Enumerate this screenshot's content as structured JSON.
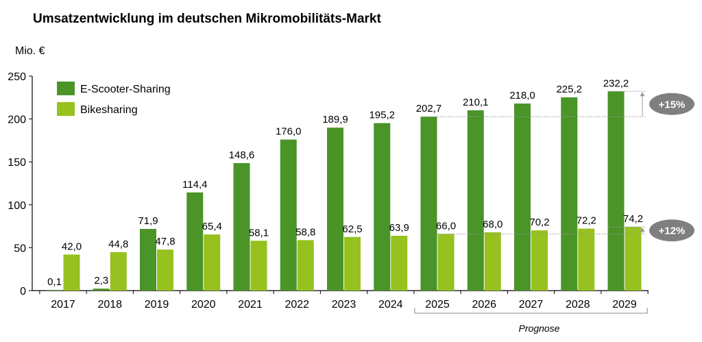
{
  "chart_data": {
    "type": "bar",
    "title": "Umsatzentwicklung im deutschen Mikromobilitäts-Markt",
    "ylabel": "Mio. €",
    "xlabel": "",
    "ylim": [
      0,
      250
    ],
    "yticks": [
      "0",
      "50",
      "100",
      "150",
      "200",
      "250"
    ],
    "grid": false,
    "legend_position": "top-left",
    "categories": [
      "2017",
      "2018",
      "2019",
      "2020",
      "2021",
      "2022",
      "2023",
      "2024",
      "2025",
      "2026",
      "2027",
      "2028",
      "2029"
    ],
    "series": [
      {
        "name": "E-Scooter-Sharing",
        "color": "#4a9428",
        "values": [
          0.1,
          2.3,
          71.9,
          114.4,
          148.6,
          176.0,
          189.9,
          195.2,
          202.7,
          210.1,
          218.0,
          225.2,
          232.2
        ],
        "labels": [
          "0,1",
          "2,3",
          "71,9",
          "114,4",
          "148,6",
          "176,0",
          "189,9",
          "195,2",
          "202,7",
          "210,1",
          "218,0",
          "225,2",
          "232,2"
        ]
      },
      {
        "name": "Bikesharing",
        "color": "#96c11e",
        "values": [
          42.0,
          44.8,
          47.8,
          65.4,
          58.1,
          58.8,
          62.5,
          63.9,
          66.0,
          68.0,
          70.2,
          72.2,
          74.2
        ],
        "labels": [
          "42,0",
          "44,8",
          "47,8",
          "65,4",
          "58,1",
          "58,8",
          "62,5",
          "63,9",
          "66,0",
          "68,0",
          "70,2",
          "72,2",
          "74,2"
        ]
      }
    ],
    "annotations": {
      "prognose_label": "Prognose",
      "prognose_range": [
        "2025",
        "2029"
      ],
      "growth_badges": [
        {
          "text": "+15%",
          "from": 202.7,
          "to": 232.2,
          "color": "#7f7f7f"
        },
        {
          "text": "+12%",
          "from": 66.0,
          "to": 74.2,
          "color": "#7f7f7f"
        }
      ]
    }
  }
}
